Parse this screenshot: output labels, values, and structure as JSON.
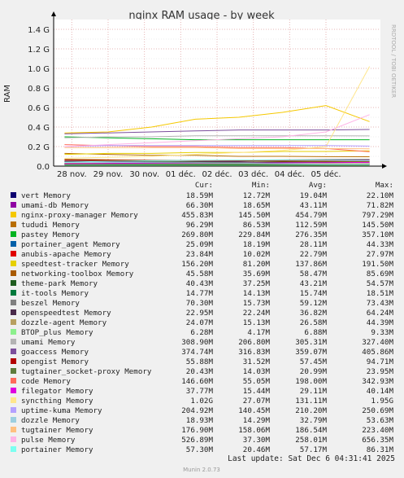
{
  "chart_data": {
    "type": "line",
    "title": "nginx RAM usage - by week",
    "ylabel": "RAM",
    "side_label": "RRDTOOL / TOBI OETIKER",
    "ylim": [
      0,
      1500000000
    ],
    "y_ticks": [
      {
        "value": 0,
        "label": "0.0"
      },
      {
        "value": 200000000,
        "label": "0.2 G"
      },
      {
        "value": 400000000,
        "label": "0.4 G"
      },
      {
        "value": 600000000,
        "label": "0.6 G"
      },
      {
        "value": 800000000,
        "label": "0.8 G"
      },
      {
        "value": 1000000000,
        "label": "1.0 G"
      },
      {
        "value": 1200000000,
        "label": "1.2 G"
      },
      {
        "value": 1400000000,
        "label": "1.4 G"
      }
    ],
    "x_ticks": [
      "28 nov.",
      "29 nov.",
      "30 nov.",
      "01 déc.",
      "02 déc.",
      "03 déc.",
      "04 déc.",
      "05 déc."
    ],
    "x_range_days": [
      0,
      9
    ],
    "x_tick_positions_days": [
      0.5,
      1.5,
      2.5,
      3.5,
      4.5,
      5.5,
      6.5,
      7.5
    ],
    "legend_headers": [
      "Cur:",
      "Min:",
      "Avg:",
      "Max:"
    ],
    "series": [
      {
        "name": "vert Memory",
        "color": "#0c006f",
        "cur": "18.59M",
        "min": "12.72M",
        "avg": "19.04M",
        "max": "22.10M",
        "values": [
          0.019,
          0.018,
          0.019,
          0.02,
          0.019,
          0.02,
          0.019,
          0.019
        ]
      },
      {
        "name": "umami-db Memory",
        "color": "#8f00a3",
        "cur": "66.30M",
        "min": "18.65M",
        "avg": "43.11M",
        "max": "71.82M",
        "values": [
          0.02,
          0.03,
          0.04,
          0.045,
          0.05,
          0.06,
          0.062,
          0.066
        ]
      },
      {
        "name": "nginx-proxy-manager Memory",
        "color": "#f5c800",
        "cur": "455.83M",
        "min": "145.50M",
        "avg": "454.79M",
        "max": "797.29M",
        "values": [
          0.34,
          0.35,
          0.4,
          0.48,
          0.5,
          0.55,
          0.62,
          0.456
        ]
      },
      {
        "name": "tududi Memory",
        "color": "#b86e00",
        "cur": "96.29M",
        "min": "86.53M",
        "avg": "112.59M",
        "max": "145.50M",
        "values": [
          0.13,
          0.12,
          0.11,
          0.11,
          0.1,
          0.1,
          0.097,
          0.096
        ]
      },
      {
        "name": "pastey Memory",
        "color": "#00b321",
        "cur": "269.80M",
        "min": "229.84M",
        "avg": "276.35M",
        "max": "357.10M",
        "values": [
          0.3,
          0.29,
          0.28,
          0.27,
          0.27,
          0.27,
          0.27,
          0.27
        ]
      },
      {
        "name": "portainer_agent Memory",
        "color": "#0060a8",
        "cur": "25.09M",
        "min": "18.19M",
        "avg": "28.11M",
        "max": "44.33M",
        "values": [
          0.03,
          0.03,
          0.028,
          0.028,
          0.027,
          0.026,
          0.025,
          0.025
        ]
      },
      {
        "name": "anubis-apache Memory",
        "color": "#e00000",
        "cur": "23.84M",
        "min": "10.02M",
        "avg": "22.79M",
        "max": "27.97M",
        "values": [
          0.02,
          0.022,
          0.023,
          0.023,
          0.024,
          0.024,
          0.024,
          0.024
        ]
      },
      {
        "name": "speedtest-tracker Memory",
        "color": "#e6d000",
        "cur": "156.20M",
        "min": "81.20M",
        "avg": "137.86M",
        "max": "191.50M",
        "values": [
          0.12,
          0.13,
          0.13,
          0.14,
          0.14,
          0.15,
          0.15,
          0.156
        ]
      },
      {
        "name": "networking-toolbox Memory",
        "color": "#a85a00",
        "cur": "45.58M",
        "min": "35.69M",
        "avg": "58.47M",
        "max": "85.69M",
        "values": [
          0.07,
          0.065,
          0.06,
          0.058,
          0.055,
          0.05,
          0.048,
          0.046
        ]
      },
      {
        "name": "theme-park Memory",
        "color": "#1f5c1f",
        "cur": "40.43M",
        "min": "37.25M",
        "avg": "43.21M",
        "max": "54.57M",
        "values": [
          0.045,
          0.044,
          0.043,
          0.043,
          0.042,
          0.042,
          0.041,
          0.04
        ]
      },
      {
        "name": "it-tools Memory",
        "color": "#007a3d",
        "cur": "14.77M",
        "min": "14.13M",
        "avg": "15.74M",
        "max": "18.51M",
        "values": [
          0.016,
          0.016,
          0.016,
          0.015,
          0.015,
          0.015,
          0.015,
          0.015
        ]
      },
      {
        "name": "beszel Memory",
        "color": "#808080",
        "cur": "70.30M",
        "min": "15.73M",
        "avg": "59.12M",
        "max": "73.43M",
        "values": [
          0.05,
          0.055,
          0.058,
          0.06,
          0.062,
          0.065,
          0.068,
          0.07
        ]
      },
      {
        "name": "openspeedtest Memory",
        "color": "#4a2a4a",
        "cur": "22.95M",
        "min": "22.24M",
        "avg": "36.82M",
        "max": "64.24M",
        "values": [
          0.05,
          0.045,
          0.04,
          0.035,
          0.03,
          0.025,
          0.023,
          0.023
        ]
      },
      {
        "name": "dozzle-agent Memory",
        "color": "#b8a060",
        "cur": "24.07M",
        "min": "15.13M",
        "avg": "26.58M",
        "max": "44.39M",
        "values": [
          0.03,
          0.028,
          0.027,
          0.027,
          0.026,
          0.025,
          0.025,
          0.024
        ]
      },
      {
        "name": "BTOP_plus Memory",
        "color": "#8cf08c",
        "cur": "6.28M",
        "min": "4.17M",
        "avg": "6.88M",
        "max": "9.33M",
        "values": [
          0.007,
          0.007,
          0.007,
          0.007,
          0.007,
          0.006,
          0.006,
          0.006
        ]
      },
      {
        "name": "umami Memory",
        "color": "#b4b4b4",
        "cur": "308.90M",
        "min": "206.80M",
        "avg": "305.31M",
        "max": "327.40M",
        "values": [
          0.29,
          0.3,
          0.3,
          0.31,
          0.31,
          0.31,
          0.31,
          0.309
        ]
      },
      {
        "name": "goaccess Memory",
        "color": "#7c4f9c",
        "cur": "374.74M",
        "min": "316.83M",
        "avg": "359.07M",
        "max": "405.86M",
        "values": [
          0.33,
          0.34,
          0.35,
          0.36,
          0.37,
          0.37,
          0.37,
          0.375
        ]
      },
      {
        "name": "opengist Memory",
        "color": "#b30000",
        "cur": "55.88M",
        "min": "31.52M",
        "avg": "57.45M",
        "max": "94.71M",
        "values": [
          0.06,
          0.058,
          0.057,
          0.057,
          0.056,
          0.056,
          0.056,
          0.056
        ]
      },
      {
        "name": "tugtainer_socket-proxy Memory",
        "color": "#5e7c3c",
        "cur": "20.43M",
        "min": "14.03M",
        "avg": "20.99M",
        "max": "23.95M",
        "values": [
          0.021,
          0.021,
          0.021,
          0.021,
          0.021,
          0.02,
          0.02,
          0.02
        ]
      },
      {
        "name": "code Memory",
        "color": "#ff6a5a",
        "cur": "146.60M",
        "min": "55.05M",
        "avg": "198.00M",
        "max": "342.93M",
        "values": [
          0.22,
          0.21,
          0.2,
          0.2,
          0.19,
          0.19,
          0.18,
          0.147
        ]
      },
      {
        "name": "filegator Memory",
        "color": "#e000e0",
        "cur": "37.77M",
        "min": "15.44M",
        "avg": "29.11M",
        "max": "40.14M",
        "values": [
          0.025,
          0.027,
          0.029,
          0.03,
          0.032,
          0.034,
          0.036,
          0.038
        ]
      },
      {
        "name": "syncthing Memory",
        "color": "#ffe68c",
        "cur": "1.02G",
        "min": "27.07M",
        "avg": "131.11M",
        "max": "1.95G",
        "values": [
          0.08,
          0.09,
          0.1,
          0.12,
          0.14,
          0.16,
          0.2,
          1.02
        ]
      },
      {
        "name": "uptime-kuma Memory",
        "color": "#b4a0ff",
        "cur": "204.92M",
        "min": "140.45M",
        "avg": "210.20M",
        "max": "250.69M",
        "values": [
          0.2,
          0.21,
          0.21,
          0.21,
          0.21,
          0.21,
          0.21,
          0.205
        ]
      },
      {
        "name": "dozzle Memory",
        "color": "#9ccfe0",
        "cur": "18.93M",
        "min": "14.29M",
        "avg": "32.79M",
        "max": "53.63M",
        "values": [
          0.04,
          0.038,
          0.035,
          0.033,
          0.03,
          0.025,
          0.02,
          0.019
        ]
      },
      {
        "name": "tugtainer Memory",
        "color": "#ffc080",
        "cur": "176.90M",
        "min": "158.06M",
        "avg": "186.54M",
        "max": "223.40M",
        "values": [
          0.19,
          0.19,
          0.19,
          0.19,
          0.18,
          0.18,
          0.18,
          0.177
        ]
      },
      {
        "name": "pulse Memory",
        "color": "#ffb4e6",
        "cur": "526.89M",
        "min": "37.30M",
        "avg": "258.01M",
        "max": "656.35M",
        "values": [
          0.2,
          0.22,
          0.24,
          0.26,
          0.28,
          0.3,
          0.35,
          0.527
        ]
      },
      {
        "name": "portainer Memory",
        "color": "#7cfff0",
        "cur": "57.30M",
        "min": "20.46M",
        "avg": "57.17M",
        "max": "86.31M",
        "values": [
          0.04,
          0.05,
          0.055,
          0.06,
          0.06,
          0.062,
          0.06,
          0.057
        ]
      }
    ]
  },
  "footer": {
    "last_update": "Last update: Sat Dec  6 04:31:41 2025",
    "generator": "Munin 2.0.73"
  }
}
